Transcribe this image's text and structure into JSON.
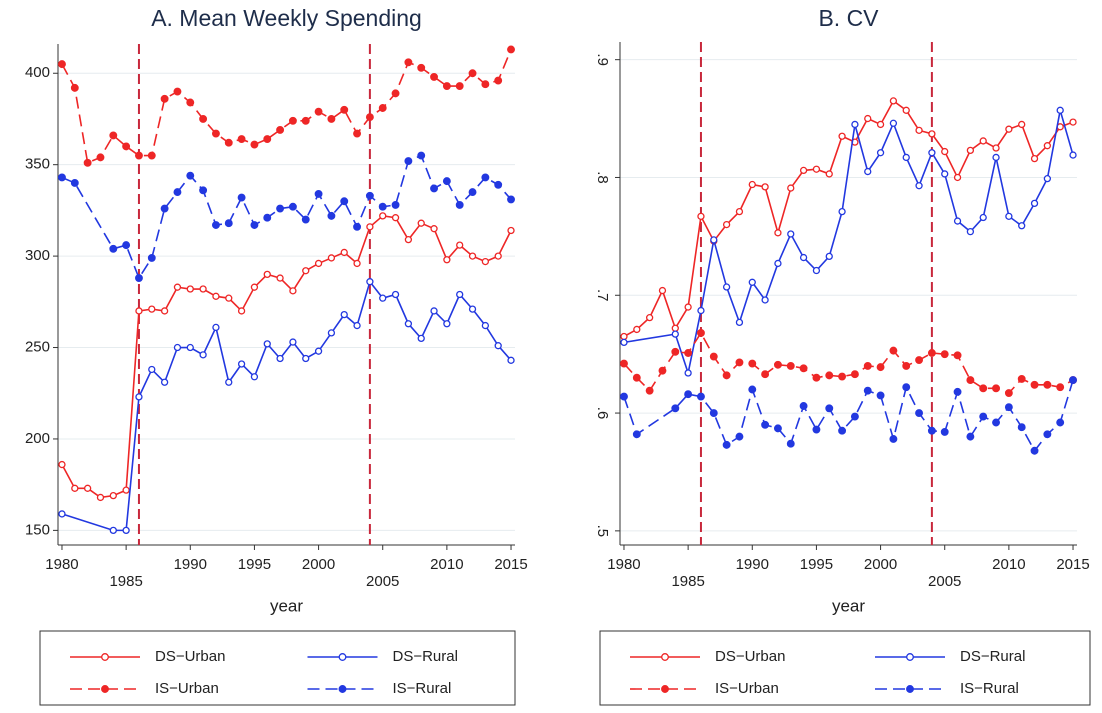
{
  "chart_data": [
    {
      "type": "line",
      "title": "A. Mean Weekly Spending",
      "x_label": "year",
      "xlim": [
        1979.69,
        2015.31
      ],
      "xticks": [
        1980,
        1985,
        1990,
        1995,
        2000,
        2005,
        2010,
        2015
      ],
      "ylim": [
        142,
        416
      ],
      "yticks": [
        150,
        200,
        250,
        300,
        350,
        400
      ],
      "grid": true,
      "vlines": [
        1986,
        2004
      ],
      "vline_color": "#c8283c",
      "series": [
        {
          "name": "DS−Urban",
          "color": "#ee2626",
          "dash": false,
          "marker": "hollow",
          "x": [
            1980,
            1981,
            1982,
            1983,
            1984,
            1985,
            1986,
            1987,
            1988,
            1989,
            1990,
            1991,
            1992,
            1993,
            1994,
            1995,
            1996,
            1997,
            1998,
            1999,
            2000,
            2001,
            2002,
            2003,
            2004,
            2005,
            2006,
            2007,
            2008,
            2009,
            2010,
            2011,
            2012,
            2013,
            2014,
            2015
          ],
          "values": [
            186,
            173,
            173,
            168,
            169,
            172,
            270,
            271,
            270,
            283,
            282,
            282,
            278,
            277,
            270,
            283,
            290,
            288,
            281,
            292,
            296,
            299,
            302,
            296,
            316,
            322,
            321,
            309,
            318,
            315,
            298,
            306,
            300,
            297,
            300,
            314
          ]
        },
        {
          "name": "DS−Rural",
          "color": "#2238e0",
          "dash": false,
          "marker": "hollow",
          "x": [
            1980,
            1984,
            1985,
            1986,
            1987,
            1988,
            1989,
            1990,
            1991,
            1992,
            1993,
            1994,
            1995,
            1996,
            1997,
            1998,
            1999,
            2000,
            2001,
            2002,
            2003,
            2004,
            2005,
            2006,
            2007,
            2008,
            2009,
            2010,
            2011,
            2012,
            2013,
            2014,
            2015
          ],
          "values": [
            159,
            150,
            150,
            223,
            238,
            231,
            250,
            250,
            246,
            261,
            231,
            241,
            234,
            252,
            244,
            253,
            244,
            248,
            258,
            268,
            262,
            286,
            277,
            279,
            263,
            255,
            270,
            263,
            279,
            271,
            262,
            251,
            243
          ]
        },
        {
          "name": "IS−Urban",
          "color": "#ee2626",
          "dash": true,
          "marker": "filled",
          "x": [
            1980,
            1981,
            1982,
            1983,
            1984,
            1985,
            1986,
            1987,
            1988,
            1989,
            1990,
            1991,
            1992,
            1993,
            1994,
            1995,
            1996,
            1997,
            1998,
            1999,
            2000,
            2001,
            2002,
            2003,
            2004,
            2005,
            2006,
            2007,
            2008,
            2009,
            2010,
            2011,
            2012,
            2013,
            2014,
            2015
          ],
          "values": [
            405,
            392,
            351,
            354,
            366,
            360,
            355,
            355,
            386,
            390,
            384,
            375,
            367,
            362,
            364,
            361,
            364,
            369,
            374,
            374,
            379,
            375,
            380,
            367,
            376,
            381,
            389,
            406,
            403,
            398,
            393,
            393,
            400,
            394,
            396,
            413
          ]
        },
        {
          "name": "IS−Rural",
          "color": "#2238e0",
          "dash": true,
          "marker": "filled",
          "x": [
            1980,
            1981,
            1984,
            1985,
            1986,
            1987,
            1988,
            1989,
            1990,
            1991,
            1992,
            1993,
            1994,
            1995,
            1996,
            1997,
            1998,
            1999,
            2000,
            2001,
            2002,
            2003,
            2004,
            2005,
            2006,
            2007,
            2008,
            2009,
            2010,
            2011,
            2012,
            2013,
            2014,
            2015
          ],
          "values": [
            343,
            340,
            304,
            306,
            288,
            299,
            326,
            335,
            344,
            336,
            317,
            318,
            332,
            317,
            321,
            326,
            327,
            320,
            334,
            322,
            330,
            316,
            333,
            327,
            328,
            352,
            355,
            337,
            341,
            328,
            335,
            343,
            339,
            331
          ]
        }
      ]
    },
    {
      "type": "line",
      "title": "B. CV",
      "x_label": "year",
      "xlim": [
        1979.69,
        2015.31
      ],
      "xticks": [
        1980,
        1985,
        1990,
        1995,
        2000,
        2005,
        2010,
        2015
      ],
      "ylim": [
        0.488,
        0.915
      ],
      "yticks": [
        {
          "value": 0.5,
          "label": ".5"
        },
        {
          "value": 0.6,
          "label": ".6"
        },
        {
          "value": 0.7,
          "label": ".7"
        },
        {
          "value": 0.8,
          "label": ".8"
        },
        {
          "value": 0.9,
          "label": ".9"
        }
      ],
      "grid": true,
      "vlines": [
        1986,
        2004
      ],
      "vline_color": "#c8283c",
      "series": [
        {
          "name": "DS−Urban",
          "color": "#ee2626",
          "dash": false,
          "marker": "hollow",
          "x": [
            1980,
            1981,
            1982,
            1983,
            1984,
            1985,
            1986,
            1987,
            1988,
            1989,
            1990,
            1991,
            1992,
            1993,
            1994,
            1995,
            1996,
            1997,
            1998,
            1999,
            2000,
            2001,
            2002,
            2003,
            2004,
            2005,
            2006,
            2007,
            2008,
            2009,
            2010,
            2011,
            2012,
            2013,
            2014,
            2015
          ],
          "values": [
            0.665,
            0.671,
            0.681,
            0.704,
            0.672,
            0.69,
            0.767,
            0.746,
            0.76,
            0.771,
            0.794,
            0.792,
            0.753,
            0.791,
            0.806,
            0.807,
            0.803,
            0.835,
            0.83,
            0.85,
            0.845,
            0.865,
            0.857,
            0.84,
            0.837,
            0.822,
            0.8,
            0.823,
            0.831,
            0.825,
            0.841,
            0.845,
            0.816,
            0.827,
            0.843,
            0.847
          ]
        },
        {
          "name": "DS−Rural",
          "color": "#2238e0",
          "dash": false,
          "marker": "hollow",
          "x": [
            1980,
            1984,
            1985,
            1986,
            1987,
            1988,
            1989,
            1990,
            1991,
            1992,
            1993,
            1994,
            1995,
            1996,
            1997,
            1998,
            1999,
            2000,
            2001,
            2002,
            2003,
            2004,
            2005,
            2006,
            2007,
            2008,
            2009,
            2010,
            2011,
            2012,
            2013,
            2014,
            2015
          ],
          "values": [
            0.66,
            0.667,
            0.634,
            0.687,
            0.747,
            0.707,
            0.677,
            0.711,
            0.696,
            0.727,
            0.752,
            0.732,
            0.721,
            0.733,
            0.771,
            0.845,
            0.805,
            0.821,
            0.846,
            0.817,
            0.793,
            0.821,
            0.803,
            0.763,
            0.754,
            0.766,
            0.817,
            0.767,
            0.759,
            0.778,
            0.799,
            0.857,
            0.819
          ]
        },
        {
          "name": "IS−Urban",
          "color": "#ee2626",
          "dash": true,
          "marker": "filled",
          "x": [
            1980,
            1981,
            1982,
            1983,
            1984,
            1985,
            1986,
            1987,
            1988,
            1989,
            1990,
            1991,
            1992,
            1993,
            1994,
            1995,
            1996,
            1997,
            1998,
            1999,
            2000,
            2001,
            2002,
            2003,
            2004,
            2005,
            2006,
            2007,
            2008,
            2009,
            2010,
            2011,
            2012,
            2013,
            2014,
            2015
          ],
          "values": [
            0.642,
            0.63,
            0.619,
            0.636,
            0.652,
            0.651,
            0.668,
            0.648,
            0.632,
            0.643,
            0.642,
            0.633,
            0.641,
            0.64,
            0.638,
            0.63,
            0.632,
            0.631,
            0.633,
            0.64,
            0.639,
            0.653,
            0.64,
            0.645,
            0.651,
            0.65,
            0.649,
            0.628,
            0.621,
            0.621,
            0.617,
            0.629,
            0.624,
            0.624,
            0.622,
            0.628
          ]
        },
        {
          "name": "IS−Rural",
          "color": "#2238e0",
          "dash": true,
          "marker": "filled",
          "x": [
            1980,
            1981,
            1984,
            1985,
            1986,
            1987,
            1988,
            1989,
            1990,
            1991,
            1992,
            1993,
            1994,
            1995,
            1996,
            1997,
            1998,
            1999,
            2000,
            2001,
            2002,
            2003,
            2004,
            2005,
            2006,
            2007,
            2008,
            2009,
            2010,
            2011,
            2012,
            2013,
            2014,
            2015
          ],
          "values": [
            0.614,
            0.582,
            0.604,
            0.616,
            0.614,
            0.6,
            0.573,
            0.58,
            0.62,
            0.59,
            0.587,
            0.574,
            0.606,
            0.586,
            0.604,
            0.585,
            0.597,
            0.619,
            0.615,
            0.578,
            0.622,
            0.6,
            0.585,
            0.584,
            0.618,
            0.58,
            0.597,
            0.592,
            0.605,
            0.588,
            0.568,
            0.582,
            0.592,
            0.628
          ]
        }
      ]
    }
  ]
}
